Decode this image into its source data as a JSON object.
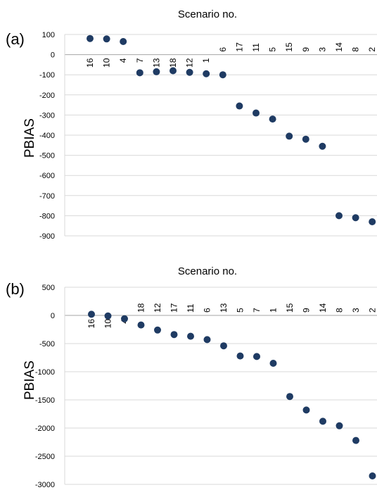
{
  "chart_data": [
    {
      "type": "scatter",
      "panel_label": "(a)",
      "title": "Scenario no.",
      "ylabel": "PBIAS",
      "ylim": [
        -900,
        100
      ],
      "yticks": [
        100,
        0,
        -100,
        -200,
        -300,
        -400,
        -500,
        -600,
        -700,
        -800,
        -900
      ],
      "grid": true,
      "legend": "none",
      "color": "#1f3b63",
      "categories": [
        "16",
        "10",
        "4",
        "7",
        "13",
        "18",
        "12",
        "1",
        "6",
        "17",
        "11",
        "5",
        "15",
        "9",
        "3",
        "14",
        "8",
        "2"
      ],
      "values": [
        80,
        78,
        65,
        -90,
        -85,
        -80,
        -88,
        -95,
        -100,
        -255,
        -290,
        -320,
        -405,
        -420,
        -455,
        -800,
        -810,
        -830
      ]
    },
    {
      "type": "scatter",
      "panel_label": "(b)",
      "title": "Scenario no.",
      "ylabel": "PBIAS",
      "ylim": [
        -3000,
        500
      ],
      "yticks": [
        500,
        0,
        -500,
        -1000,
        -1500,
        -2000,
        -2500,
        -3000
      ],
      "grid": true,
      "legend": "none",
      "color": "#1f3b63",
      "categories": [
        "16",
        "10",
        "4",
        "18",
        "12",
        "17",
        "11",
        "6",
        "13",
        "5",
        "7",
        "1",
        "15",
        "9",
        "14",
        "8",
        "3",
        "2"
      ],
      "values": [
        20,
        -10,
        -60,
        -170,
        -260,
        -340,
        -370,
        -430,
        -540,
        -720,
        -730,
        -850,
        -1440,
        -1680,
        -1880,
        -1960,
        -2220,
        -2850
      ]
    }
  ]
}
